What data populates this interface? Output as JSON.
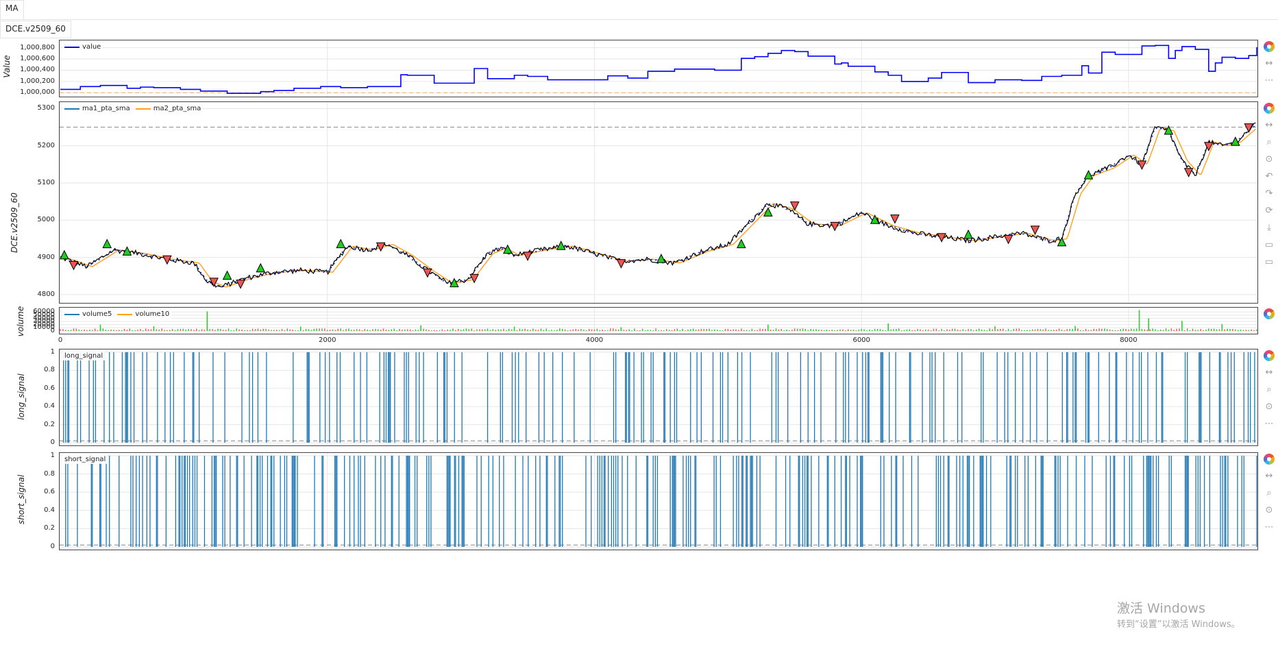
{
  "tabs": {
    "top": "MA",
    "sub": "DCE.v2509_60"
  },
  "watermark": {
    "line1": "激活 Windows",
    "line2": "转到“设置”以激活 Windows。"
  },
  "colors": {
    "value_line": "#0000ff",
    "ma1": "#1f77b4",
    "ma2": "#ff9f1a",
    "up": "#22cc22",
    "down": "#ee5555",
    "signal": "#1f77b4",
    "grid": "#e6e6e6",
    "ref": "#888888"
  },
  "chart_data": [
    {
      "type": "line",
      "id": "value",
      "ylabel": "Value",
      "yticks": [
        "1,000,800",
        "1,000,600",
        "1,000,400",
        "1,000,200",
        "1,000,000"
      ],
      "ytick_values": [
        1000800,
        1000600,
        1000400,
        1000200,
        1000000
      ],
      "ylim": [
        999980,
        1000880
      ],
      "reference_line": 1000000,
      "series": [
        {
          "name": "value",
          "x": [
            0,
            150,
            300,
            500,
            600,
            700,
            900,
            1050,
            1250,
            1500,
            1600,
            1750,
            1950,
            2100,
            2300,
            2550,
            2600,
            2800,
            3100,
            3200,
            3400,
            3500,
            3650,
            4100,
            4250,
            4400,
            4600,
            4900,
            5100,
            5200,
            5300,
            5400,
            5500,
            5600,
            5800,
            5850,
            5900,
            6100,
            6200,
            6300,
            6500,
            6600,
            6800,
            7000,
            7200,
            7350,
            7500,
            7650,
            7700,
            7800,
            7850,
            7900,
            8100,
            8200,
            8300,
            8350,
            8400,
            8500,
            8600,
            8650,
            8700,
            8800,
            8900,
            8960
          ],
          "values": [
            1000060,
            1000110,
            1000130,
            1000080,
            1000100,
            1000090,
            1000060,
            1000030,
            999990,
            1000020,
            1000040,
            1000080,
            1000110,
            1000090,
            1000110,
            1000320,
            1000310,
            1000170,
            1000430,
            1000250,
            1000310,
            1000290,
            1000230,
            1000300,
            1000260,
            1000380,
            1000420,
            1000400,
            1000610,
            1000640,
            1000700,
            1000750,
            1000730,
            1000650,
            1000510,
            1000530,
            1000470,
            1000370,
            1000310,
            1000200,
            1000260,
            1000360,
            1000180,
            1000230,
            1000220,
            1000290,
            1000310,
            1000480,
            1000350,
            1000720,
            1000720,
            1000680,
            1000830,
            1000840,
            1000610,
            1000750,
            1000820,
            1000770,
            1000380,
            1000530,
            1000630,
            1000610,
            1000660,
            1000810
          ]
        }
      ]
    },
    {
      "type": "line",
      "id": "price",
      "ylabel": "DCE.v2509_60",
      "yticks": [
        "5300",
        "5200",
        "5100",
        "5000",
        "4900",
        "4800"
      ],
      "ytick_values": [
        5300,
        5200,
        5100,
        5000,
        4900,
        4800
      ],
      "ylim": [
        4785,
        5310
      ],
      "reference_line": 5250,
      "series": [
        {
          "name": "ma1_pta_sma"
        },
        {
          "name": "ma2_pta_sma"
        }
      ],
      "x": [
        0,
        200,
        400,
        600,
        800,
        1000,
        1100,
        1200,
        1400,
        1600,
        1800,
        2000,
        2150,
        2300,
        2450,
        2600,
        2750,
        2900,
        3050,
        3200,
        3300,
        3400,
        3600,
        3800,
        4000,
        4200,
        4400,
        4600,
        4800,
        5000,
        5150,
        5300,
        5450,
        5600,
        5800,
        6000,
        6200,
        6400,
        6600,
        6800,
        7000,
        7200,
        7400,
        7500,
        7600,
        7700,
        7850,
        8000,
        8100,
        8200,
        8300,
        8400,
        8500,
        8600,
        8700,
        8800,
        8960
      ],
      "close": [
        4900,
        4875,
        4920,
        4910,
        4895,
        4885,
        4835,
        4820,
        4845,
        4860,
        4865,
        4860,
        4930,
        4920,
        4935,
        4905,
        4865,
        4830,
        4840,
        4910,
        4925,
        4905,
        4920,
        4930,
        4910,
        4890,
        4895,
        4885,
        4915,
        4935,
        4990,
        5045,
        5030,
        4990,
        4985,
        5020,
        4985,
        4965,
        4955,
        4945,
        4955,
        4965,
        4945,
        4950,
        5070,
        5120,
        5140,
        5175,
        5150,
        5250,
        5240,
        5160,
        5120,
        5210,
        5200,
        5210,
        5260
      ],
      "markers": {
        "up": [
          [
            30,
            4905
          ],
          [
            350,
            4935
          ],
          [
            500,
            4915
          ],
          [
            1250,
            4850
          ],
          [
            1500,
            4870
          ],
          [
            2100,
            4935
          ],
          [
            2950,
            4830
          ],
          [
            3350,
            4920
          ],
          [
            3750,
            4930
          ],
          [
            4500,
            4895
          ],
          [
            5100,
            4935
          ],
          [
            5300,
            5020
          ],
          [
            6100,
            5000
          ],
          [
            6800,
            4960
          ],
          [
            7500,
            4940
          ],
          [
            7700,
            5120
          ],
          [
            8300,
            5240
          ],
          [
            8800,
            5210
          ]
        ],
        "down": [
          [
            100,
            4880
          ],
          [
            800,
            4895
          ],
          [
            1150,
            4835
          ],
          [
            1350,
            4830
          ],
          [
            2400,
            4930
          ],
          [
            2750,
            4860
          ],
          [
            3100,
            4845
          ],
          [
            3500,
            4905
          ],
          [
            4200,
            4885
          ],
          [
            5500,
            5040
          ],
          [
            5800,
            4985
          ],
          [
            6250,
            5005
          ],
          [
            6600,
            4955
          ],
          [
            7100,
            4950
          ],
          [
            7300,
            4975
          ],
          [
            8100,
            5150
          ],
          [
            8450,
            5130
          ],
          [
            8600,
            5200
          ],
          [
            8900,
            5250
          ]
        ]
      }
    },
    {
      "type": "bar",
      "id": "volume",
      "ylabel": "volume",
      "yticks": [
        "60000",
        "50000",
        "40000",
        "30000",
        "20000",
        "10000",
        "0"
      ],
      "ytick_values": [
        60000,
        50000,
        40000,
        30000,
        20000,
        10000,
        0
      ],
      "ylim": [
        0,
        65000
      ],
      "series": [
        {
          "name": "volume5"
        },
        {
          "name": "volume10"
        }
      ],
      "spikes": [
        [
          300,
          20000
        ],
        [
          700,
          15000
        ],
        [
          1100,
          62000
        ],
        [
          1800,
          14000
        ],
        [
          2700,
          18000
        ],
        [
          3400,
          14000
        ],
        [
          4200,
          12000
        ],
        [
          5300,
          20000
        ],
        [
          6200,
          24000
        ],
        [
          7000,
          15000
        ],
        [
          7600,
          16000
        ],
        [
          8080,
          66000
        ],
        [
          8150,
          40000
        ],
        [
          8400,
          32000
        ],
        [
          8700,
          22000
        ]
      ]
    },
    {
      "type": "bar",
      "id": "long_signal",
      "ylabel": "long_signal",
      "legend": "long_signal",
      "yticks": [
        "1",
        "0.8",
        "0.6",
        "0.4",
        "0.2",
        "0"
      ],
      "ytick_values": [
        1,
        0.8,
        0.6,
        0.4,
        0.2,
        0
      ],
      "ylim": [
        0,
        1
      ]
    },
    {
      "type": "bar",
      "id": "short_signal",
      "ylabel": "short_signal",
      "legend": "short_signal",
      "yticks": [
        "1",
        "0.8",
        "0.6",
        "0.4",
        "0.2",
        "0"
      ],
      "ytick_values": [
        1,
        0.8,
        0.6,
        0.4,
        0.2,
        0
      ],
      "ylim": [
        0,
        1
      ]
    }
  ],
  "xaxis": {
    "ticks": [
      "0",
      "2000",
      "4000",
      "6000",
      "8000"
    ],
    "tick_values": [
      0,
      2000,
      4000,
      6000,
      8000
    ],
    "xlim": [
      0,
      8960
    ]
  }
}
